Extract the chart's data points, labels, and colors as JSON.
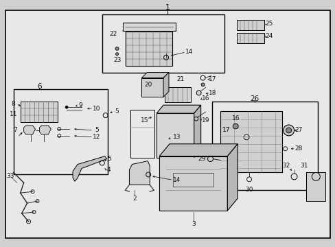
{
  "bg_outer": "#d0d0d0",
  "bg_inner": "#e8e8e8",
  "line_color": "#222222",
  "text_color": "#111111",
  "fontsize": 6.5,
  "title": "1",
  "figsize": [
    4.89,
    3.6
  ],
  "dpi": 100
}
